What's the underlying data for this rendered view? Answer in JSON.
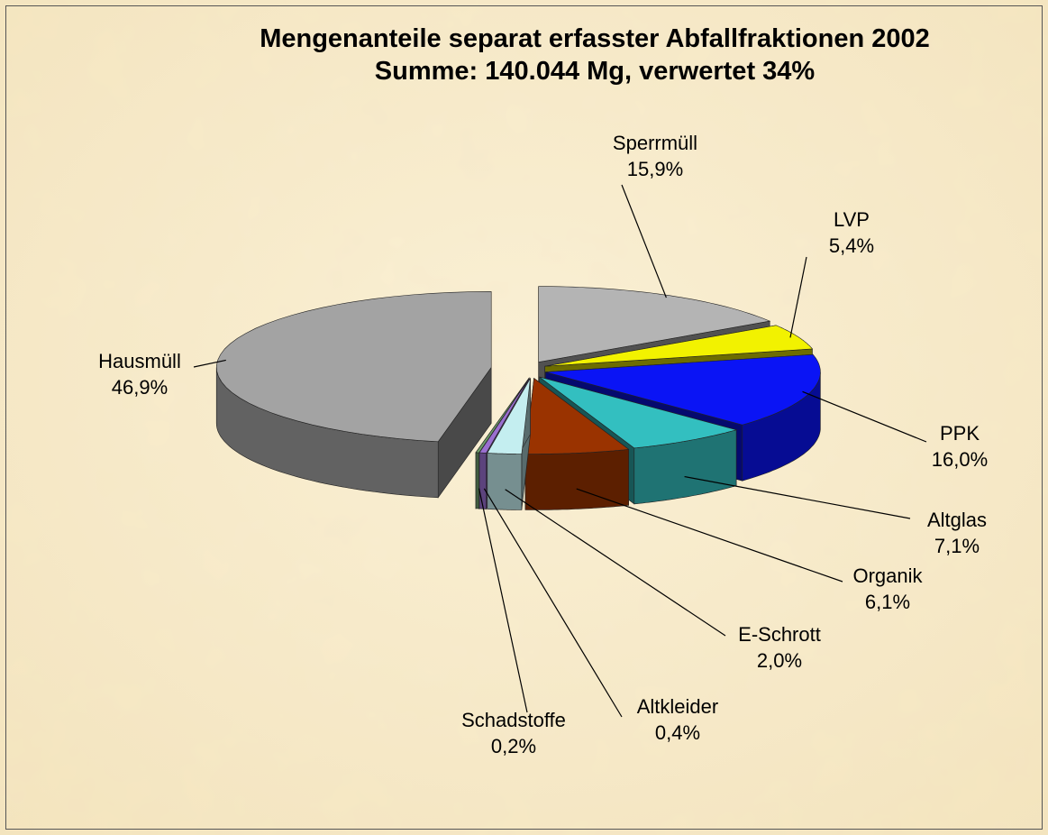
{
  "chart_data": {
    "type": "pie",
    "title": "Mengenanteile separat erfasster Abfallfraktionen 2002",
    "subtitle": "Summe: 140.044 Mg, verwertet 34%",
    "categories": [
      "Sperrmüll",
      "LVP",
      "PPK",
      "Altglas",
      "Organik",
      "E-Schrott",
      "Altkleider",
      "Schadstoffe",
      "Hausmüll"
    ],
    "values": [
      15.9,
      5.4,
      16.0,
      7.1,
      6.1,
      2.0,
      0.4,
      0.2,
      46.9
    ],
    "value_labels": [
      "15,9%",
      "5,4%",
      "16,0%",
      "7,1%",
      "6,1%",
      "2,0%",
      "0,4%",
      "0,2%",
      "46,9%"
    ],
    "colors": [
      "#b4b4b4",
      "#f2f200",
      "#0a14f5",
      "#33bfc0",
      "#9a3300",
      "#c4eef0",
      "#9a6fd0",
      "#6d9a6a",
      "#a3a3a3"
    ]
  }
}
